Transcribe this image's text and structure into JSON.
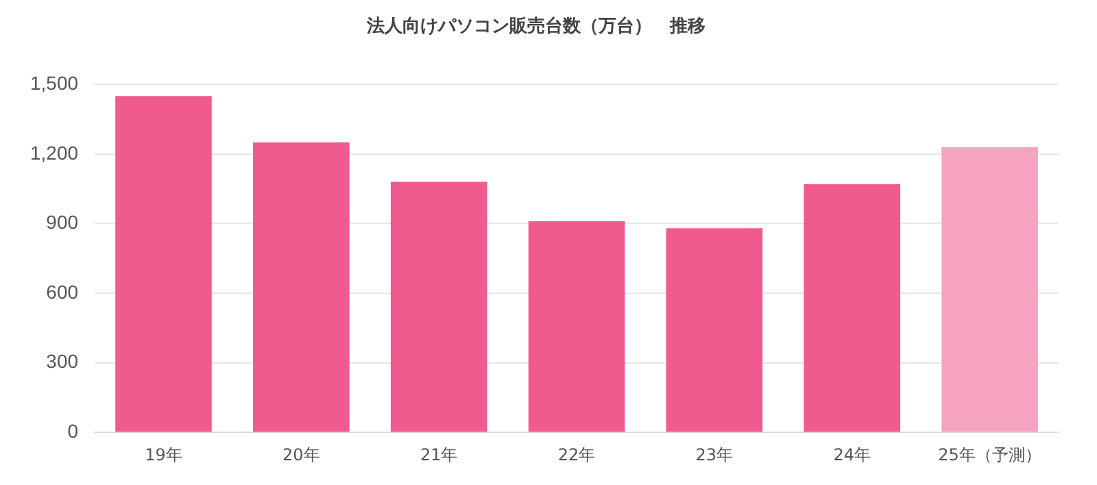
{
  "chart_data": {
    "type": "bar",
    "title": "法人向けパソコン販売台数（万台）　推移",
    "categories": [
      "19年",
      "20年",
      "21年",
      "22年",
      "23年",
      "24年",
      "25年（予測）"
    ],
    "values": [
      1450,
      1250,
      1080,
      910,
      880,
      1070,
      1230
    ],
    "colors": [
      "#ef5a8f",
      "#ef5a8f",
      "#ef5a8f",
      "#ef5a8f",
      "#ef5a8f",
      "#ef5a8f",
      "#f6a3c2"
    ],
    "ylim": [
      0,
      1500
    ],
    "yticks": [
      0,
      300,
      600,
      900,
      {
        "value": 1200,
        "label": "1,200"
      },
      {
        "value": 1500,
        "label": "1,500"
      }
    ],
    "grid": "y"
  }
}
